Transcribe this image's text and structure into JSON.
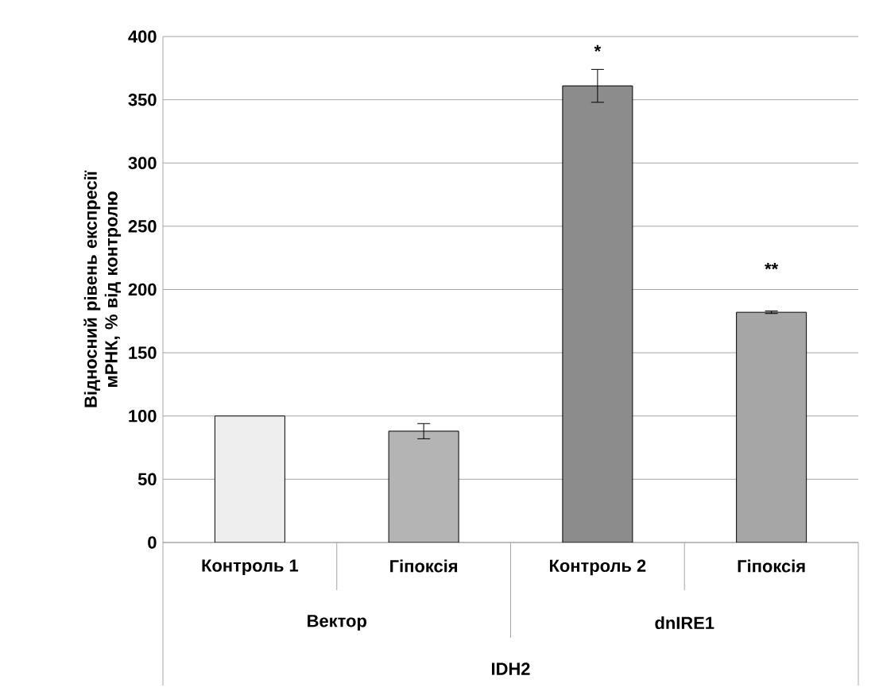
{
  "chart_data": {
    "type": "bar",
    "ylabel": "Відносний  рівень експресії мРНК, % від контролю",
    "categories": [
      "Контроль 1",
      "Гіпоксія",
      "Контроль 2",
      "Гіпоксія"
    ],
    "values": [
      100,
      88,
      361,
      182
    ],
    "errors": [
      null,
      6,
      13,
      1
    ],
    "colors": [
      "#eeeeee",
      "#b4b4b4",
      "#8c8c8c",
      "#a6a6a6"
    ],
    "ylim": [
      0,
      400
    ],
    "yticks": [
      0,
      50,
      100,
      150,
      200,
      250,
      300,
      350,
      400
    ],
    "grid": "y",
    "annotations": [
      "*",
      "**",
      "Вектор",
      "dnIRE1",
      "IDH2"
    ]
  }
}
